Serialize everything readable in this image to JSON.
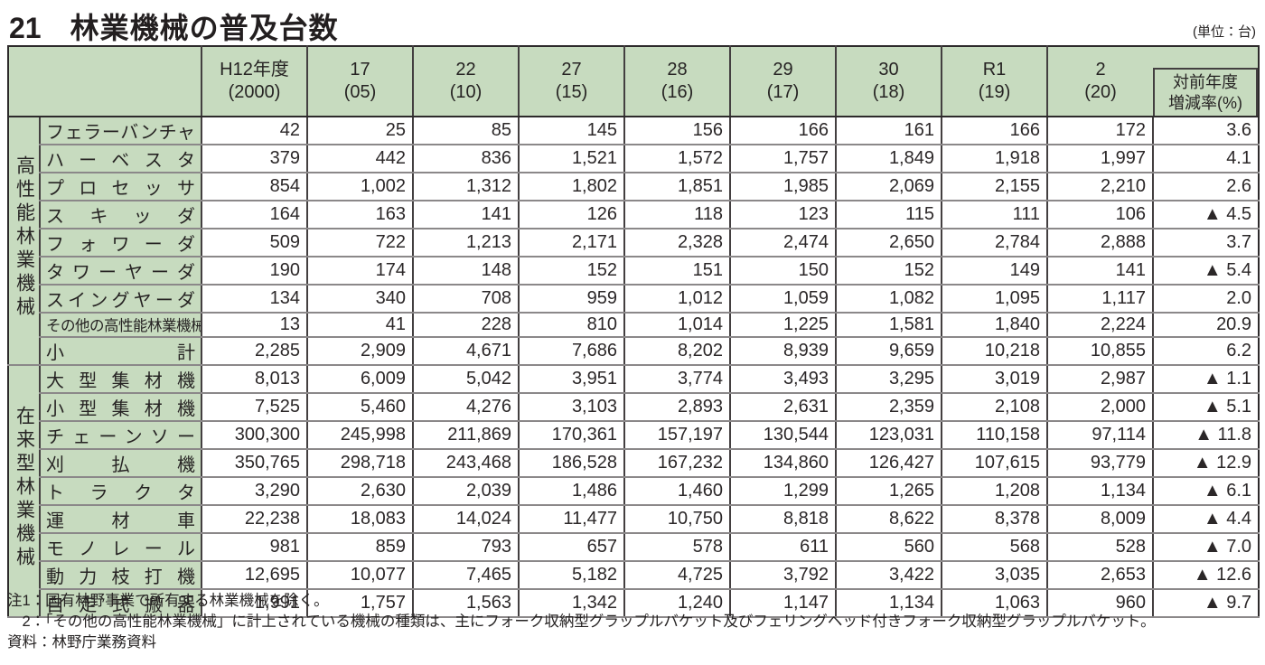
{
  "title": {
    "number": "21",
    "text": "林業機械の普及台数"
  },
  "unit_label": "(単位：台)",
  "table": {
    "col_headers": [
      {
        "line1": "H12年度",
        "line2": "(2000)"
      },
      {
        "line1": "17",
        "line2": "(05)"
      },
      {
        "line1": "22",
        "line2": "(10)"
      },
      {
        "line1": "27",
        "line2": "(15)"
      },
      {
        "line1": "28",
        "line2": "(16)"
      },
      {
        "line1": "29",
        "line2": "(17)"
      },
      {
        "line1": "30",
        "line2": "(18)"
      },
      {
        "line1": "R1",
        "line2": "(19)"
      },
      {
        "line1": "2",
        "line2": "(20)"
      }
    ],
    "rate_header": {
      "line1": "対前年度",
      "line2": "増減率(%)"
    },
    "groups": [
      {
        "name": "高性能林業機械",
        "rows": [
          {
            "label": "フェラーバンチャ",
            "values": [
              "42",
              "25",
              "85",
              "145",
              "156",
              "166",
              "161",
              "166",
              "172"
            ],
            "rate": "3.6"
          },
          {
            "label": "ハーベスタ",
            "values": [
              "379",
              "442",
              "836",
              "1,521",
              "1,572",
              "1,757",
              "1,849",
              "1,918",
              "1,997"
            ],
            "rate": "4.1"
          },
          {
            "label": "プロセッサ",
            "values": [
              "854",
              "1,002",
              "1,312",
              "1,802",
              "1,851",
              "1,985",
              "2,069",
              "2,155",
              "2,210"
            ],
            "rate": "2.6"
          },
          {
            "label": "スキッダ",
            "values": [
              "164",
              "163",
              "141",
              "126",
              "118",
              "123",
              "115",
              "111",
              "106"
            ],
            "rate": "▲ 4.5"
          },
          {
            "label": "フォワーダ",
            "values": [
              "509",
              "722",
              "1,213",
              "2,171",
              "2,328",
              "2,474",
              "2,650",
              "2,784",
              "2,888"
            ],
            "rate": "3.7"
          },
          {
            "label": "タワーヤーダ",
            "values": [
              "190",
              "174",
              "148",
              "152",
              "151",
              "150",
              "152",
              "149",
              "141"
            ],
            "rate": "▲ 5.4"
          },
          {
            "label": "スイングヤーダ",
            "values": [
              "134",
              "340",
              "708",
              "959",
              "1,012",
              "1,059",
              "1,082",
              "1,095",
              "1,117"
            ],
            "rate": "2.0"
          },
          {
            "label": "その他の高性能林業機械",
            "values": [
              "13",
              "41",
              "228",
              "810",
              "1,014",
              "1,225",
              "1,581",
              "1,840",
              "2,224"
            ],
            "rate": "20.9"
          },
          {
            "label": "小計",
            "values": [
              "2,285",
              "2,909",
              "4,671",
              "7,686",
              "8,202",
              "8,939",
              "9,659",
              "10,218",
              "10,855"
            ],
            "rate": "6.2"
          }
        ]
      },
      {
        "name": "在来型林業機械",
        "rows": [
          {
            "label": "大型集材機",
            "values": [
              "8,013",
              "6,009",
              "5,042",
              "3,951",
              "3,774",
              "3,493",
              "3,295",
              "3,019",
              "2,987"
            ],
            "rate": "▲ 1.1"
          },
          {
            "label": "小型集材機",
            "values": [
              "7,525",
              "5,460",
              "4,276",
              "3,103",
              "2,893",
              "2,631",
              "2,359",
              "2,108",
              "2,000"
            ],
            "rate": "▲ 5.1"
          },
          {
            "label": "チェーンソー",
            "values": [
              "300,300",
              "245,998",
              "211,869",
              "170,361",
              "157,197",
              "130,544",
              "123,031",
              "110,158",
              "97,114"
            ],
            "rate": "▲ 11.8"
          },
          {
            "label": "刈払機",
            "values": [
              "350,765",
              "298,718",
              "243,468",
              "186,528",
              "167,232",
              "134,860",
              "126,427",
              "107,615",
              "93,779"
            ],
            "rate": "▲ 12.9"
          },
          {
            "label": "トラクタ",
            "values": [
              "3,290",
              "2,630",
              "2,039",
              "1,486",
              "1,460",
              "1,299",
              "1,265",
              "1,208",
              "1,134"
            ],
            "rate": "▲ 6.1"
          },
          {
            "label": "運材車",
            "values": [
              "22,238",
              "18,083",
              "14,024",
              "11,477",
              "10,750",
              "8,818",
              "8,622",
              "8,378",
              "8,009"
            ],
            "rate": "▲ 4.4"
          },
          {
            "label": "モノレール",
            "values": [
              "981",
              "859",
              "793",
              "657",
              "578",
              "611",
              "560",
              "568",
              "528"
            ],
            "rate": "▲ 7.0"
          },
          {
            "label": "動力枝打機",
            "values": [
              "12,695",
              "10,077",
              "7,465",
              "5,182",
              "4,725",
              "3,792",
              "3,422",
              "3,035",
              "2,653"
            ],
            "rate": "▲ 12.6"
          },
          {
            "label": "自走式搬器",
            "values": [
              "1,991",
              "1,757",
              "1,563",
              "1,342",
              "1,240",
              "1,147",
              "1,134",
              "1,063",
              "960"
            ],
            "rate": "▲ 9.7"
          }
        ]
      }
    ]
  },
  "notes": [
    "注1：国有林野事業で所有する林業機械を除く。",
    "　2：「その他の高性能林業機械」に計上されている機械の種類は、主にフォーク収納型グラップルバケット及びフェリングヘッド付きフォーク収納型グラップルバケット。",
    "資料：林野庁業務資料"
  ]
}
